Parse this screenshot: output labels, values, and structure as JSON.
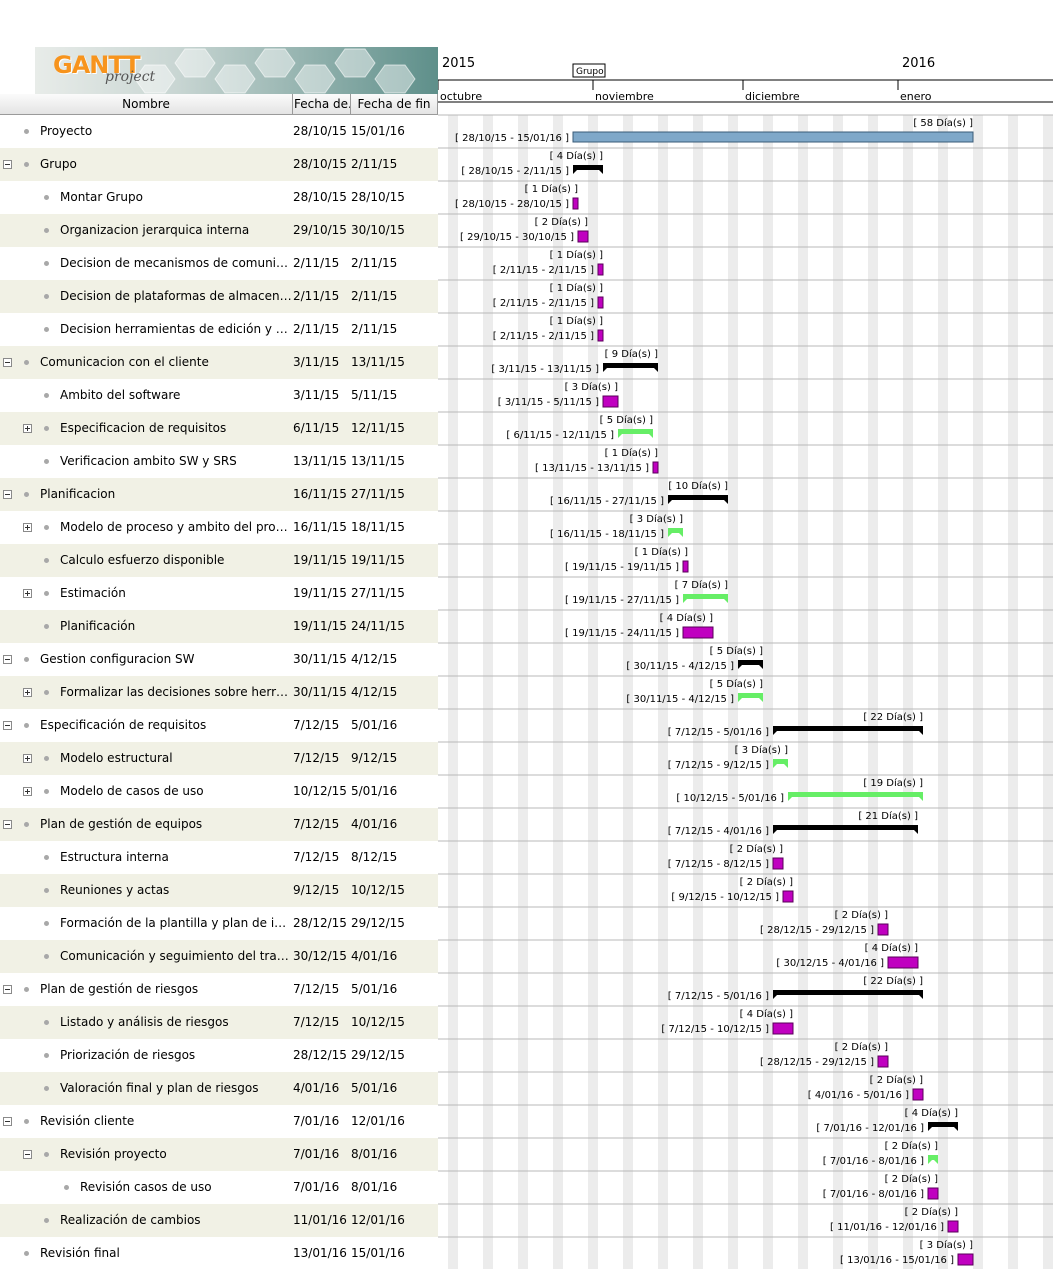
{
  "columns": {
    "name": "Nombre",
    "start": "Fecha de...",
    "end": "Fecha de fin"
  },
  "logo": {
    "main": "GANTT",
    "sub": "project"
  },
  "timeline": {
    "years": [
      "2015",
      "2016"
    ],
    "months": [
      "octubre",
      "noviembre",
      "diciembre",
      "enero"
    ],
    "marker": "Grupo"
  },
  "colors": {
    "summary": "#000000",
    "task": "#c000c0",
    "collapsed": "#66ee66",
    "project": "#7fa8c9",
    "task_border": "#5a005a"
  },
  "tasks": [
    {
      "name": "Proyecto",
      "start": "28/10/15",
      "end": "15/01/16",
      "level": 0,
      "toggle": "",
      "kind": "project",
      "duration": "[ 58 Día(s) ]",
      "range": "[ 28/10/15 - 15/01/16 ]",
      "s": "2015-10-28",
      "e": "2016-01-15"
    },
    {
      "name": "Grupo",
      "start": "28/10/15",
      "end": "2/11/15",
      "level": 0,
      "toggle": "minus",
      "kind": "summary",
      "duration": "[ 4 Día(s) ]",
      "range": "[ 28/10/15 - 2/11/15 ]",
      "s": "2015-10-28",
      "e": "2015-11-02"
    },
    {
      "name": "Montar Grupo",
      "start": "28/10/15",
      "end": "28/10/15",
      "level": 1,
      "toggle": "",
      "kind": "task",
      "duration": "[ 1 Día(s) ]",
      "range": "[ 28/10/15 - 28/10/15 ]",
      "s": "2015-10-28",
      "e": "2015-10-28"
    },
    {
      "name": "Organizacion jerarquica interna",
      "start": "29/10/15",
      "end": "30/10/15",
      "level": 1,
      "toggle": "",
      "kind": "task",
      "duration": "[ 2 Día(s) ]",
      "range": "[ 29/10/15 - 30/10/15 ]",
      "s": "2015-10-29",
      "e": "2015-10-30"
    },
    {
      "name": "Decision de mecanismos de comunicacion",
      "start": "2/11/15",
      "end": "2/11/15",
      "level": 1,
      "toggle": "",
      "kind": "task",
      "duration": "[ 1 Día(s) ]",
      "range": "[ 2/11/15 - 2/11/15 ]",
      "s": "2015-11-02",
      "e": "2015-11-02"
    },
    {
      "name": "Decision de plataformas de almacenamie...",
      "start": "2/11/15",
      "end": "2/11/15",
      "level": 1,
      "toggle": "",
      "kind": "task",
      "duration": "[ 1 Día(s) ]",
      "range": "[ 2/11/15 - 2/11/15 ]",
      "s": "2015-11-02",
      "e": "2015-11-02"
    },
    {
      "name": "Decision herramientas de edición y planifi...",
      "start": "2/11/15",
      "end": "2/11/15",
      "level": 1,
      "toggle": "",
      "kind": "task",
      "duration": "[ 1 Día(s) ]",
      "range": "[ 2/11/15 - 2/11/15 ]",
      "s": "2015-11-02",
      "e": "2015-11-02"
    },
    {
      "name": "Comunicacion con el cliente",
      "start": "3/11/15",
      "end": "13/11/15",
      "level": 0,
      "toggle": "minus",
      "kind": "summary",
      "duration": "[ 9 Día(s) ]",
      "range": "[ 3/11/15 - 13/11/15 ]",
      "s": "2015-11-03",
      "e": "2015-11-13"
    },
    {
      "name": "Ambito del software",
      "start": "3/11/15",
      "end": "5/11/15",
      "level": 1,
      "toggle": "",
      "kind": "task",
      "duration": "[ 3 Día(s) ]",
      "range": "[ 3/11/15 - 5/11/15 ]",
      "s": "2015-11-03",
      "e": "2015-11-05"
    },
    {
      "name": "Especificacion de requisitos",
      "start": "6/11/15",
      "end": "12/11/15",
      "level": 1,
      "toggle": "plus",
      "kind": "collapsed",
      "duration": "[ 5 Día(s) ]",
      "range": "[ 6/11/15 - 12/11/15 ]",
      "s": "2015-11-06",
      "e": "2015-11-12"
    },
    {
      "name": "Verificacion ambito SW y SRS",
      "start": "13/11/15",
      "end": "13/11/15",
      "level": 1,
      "toggle": "",
      "kind": "task",
      "duration": "[ 1 Día(s) ]",
      "range": "[ 13/11/15 - 13/11/15 ]",
      "s": "2015-11-13",
      "e": "2015-11-13"
    },
    {
      "name": "Planificacion",
      "start": "16/11/15",
      "end": "27/11/15",
      "level": 0,
      "toggle": "minus",
      "kind": "summary",
      "duration": "[ 10 Día(s) ]",
      "range": "[ 16/11/15 - 27/11/15 ]",
      "s": "2015-11-16",
      "e": "2015-11-27"
    },
    {
      "name": "Modelo de proceso y ambito del proyecto",
      "start": "16/11/15",
      "end": "18/11/15",
      "level": 1,
      "toggle": "plus",
      "kind": "collapsed",
      "duration": "[ 3 Día(s) ]",
      "range": "[ 16/11/15 - 18/11/15 ]",
      "s": "2015-11-16",
      "e": "2015-11-18"
    },
    {
      "name": "Calculo esfuerzo disponible",
      "start": "19/11/15",
      "end": "19/11/15",
      "level": 1,
      "toggle": "",
      "kind": "task",
      "duration": "[ 1 Día(s) ]",
      "range": "[ 19/11/15 - 19/11/15 ]",
      "s": "2015-11-19",
      "e": "2015-11-19"
    },
    {
      "name": "Estimación",
      "start": "19/11/15",
      "end": "27/11/15",
      "level": 1,
      "toggle": "plus",
      "kind": "collapsed",
      "duration": "[ 7 Día(s) ]",
      "range": "[ 19/11/15 - 27/11/15 ]",
      "s": "2015-11-19",
      "e": "2015-11-27"
    },
    {
      "name": "Planificación",
      "start": "19/11/15",
      "end": "24/11/15",
      "level": 1,
      "toggle": "",
      "kind": "task",
      "duration": "[ 4 Día(s) ]",
      "range": "[ 19/11/15 - 24/11/15 ]",
      "s": "2015-11-19",
      "e": "2015-11-24"
    },
    {
      "name": "Gestion configuracion SW",
      "start": "30/11/15",
      "end": "4/12/15",
      "level": 0,
      "toggle": "minus",
      "kind": "summary",
      "duration": "[ 5 Día(s) ]",
      "range": "[ 30/11/15 - 4/12/15 ]",
      "s": "2015-11-30",
      "e": "2015-12-04"
    },
    {
      "name": "Formalizar las decisiones sobre herramient...",
      "start": "30/11/15",
      "end": "4/12/15",
      "level": 1,
      "toggle": "plus",
      "kind": "collapsed",
      "duration": "[ 5 Día(s) ]",
      "range": "[ 30/11/15 - 4/12/15 ]",
      "s": "2015-11-30",
      "e": "2015-12-04"
    },
    {
      "name": "Especificación de requisitos",
      "start": "7/12/15",
      "end": "5/01/16",
      "level": 0,
      "toggle": "minus",
      "kind": "summary",
      "duration": "[ 22 Día(s) ]",
      "range": "[ 7/12/15 - 5/01/16 ]",
      "s": "2015-12-07",
      "e": "2016-01-05"
    },
    {
      "name": "Modelo estructural",
      "start": "7/12/15",
      "end": "9/12/15",
      "level": 1,
      "toggle": "plus",
      "kind": "collapsed",
      "duration": "[ 3 Día(s) ]",
      "range": "[ 7/12/15 - 9/12/15 ]",
      "s": "2015-12-07",
      "e": "2015-12-09"
    },
    {
      "name": "Modelo de casos de uso",
      "start": "10/12/15",
      "end": "5/01/16",
      "level": 1,
      "toggle": "plus",
      "kind": "collapsed",
      "duration": "[ 19 Día(s) ]",
      "range": "[ 10/12/15 - 5/01/16 ]",
      "s": "2015-12-10",
      "e": "2016-01-05"
    },
    {
      "name": "Plan de gestión de equipos",
      "start": "7/12/15",
      "end": "4/01/16",
      "level": 0,
      "toggle": "minus",
      "kind": "summary",
      "duration": "[ 21 Día(s) ]",
      "range": "[ 7/12/15 - 4/01/16 ]",
      "s": "2015-12-07",
      "e": "2016-01-04"
    },
    {
      "name": "Estructura interna",
      "start": "7/12/15",
      "end": "8/12/15",
      "level": 1,
      "toggle": "",
      "kind": "task",
      "duration": "[ 2 Día(s) ]",
      "range": "[ 7/12/15 - 8/12/15 ]",
      "s": "2015-12-07",
      "e": "2015-12-08"
    },
    {
      "name": "Reuniones y actas",
      "start": "9/12/15",
      "end": "10/12/15",
      "level": 1,
      "toggle": "",
      "kind": "task",
      "duration": "[ 2 Día(s) ]",
      "range": "[ 9/12/15 - 10/12/15 ]",
      "s": "2015-12-09",
      "e": "2015-12-10"
    },
    {
      "name": "Formación de la plantilla y plan de informes",
      "start": "28/12/15",
      "end": "29/12/15",
      "level": 1,
      "toggle": "",
      "kind": "task",
      "duration": "[ 2 Día(s) ]",
      "range": "[ 28/12/15 - 29/12/15 ]",
      "s": "2015-12-28",
      "e": "2015-12-29"
    },
    {
      "name": "Comunicación y seguimiento del trabajo",
      "start": "30/12/15",
      "end": "4/01/16",
      "level": 1,
      "toggle": "",
      "kind": "task",
      "duration": "[ 4 Día(s) ]",
      "range": "[ 30/12/15 - 4/01/16 ]",
      "s": "2015-12-30",
      "e": "2016-01-04"
    },
    {
      "name": "Plan de gestión de riesgos",
      "start": "7/12/15",
      "end": "5/01/16",
      "level": 0,
      "toggle": "minus",
      "kind": "summary",
      "duration": "[ 22 Día(s) ]",
      "range": "[ 7/12/15 - 5/01/16 ]",
      "s": "2015-12-07",
      "e": "2016-01-05"
    },
    {
      "name": "Listado y análisis de riesgos",
      "start": "7/12/15",
      "end": "10/12/15",
      "level": 1,
      "toggle": "",
      "kind": "task",
      "duration": "[ 4 Día(s) ]",
      "range": "[ 7/12/15 - 10/12/15 ]",
      "s": "2015-12-07",
      "e": "2015-12-10"
    },
    {
      "name": "Priorización de riesgos",
      "start": "28/12/15",
      "end": "29/12/15",
      "level": 1,
      "toggle": "",
      "kind": "task",
      "duration": "[ 2 Día(s) ]",
      "range": "[ 28/12/15 - 29/12/15 ]",
      "s": "2015-12-28",
      "e": "2015-12-29"
    },
    {
      "name": "Valoración final y plan de riesgos",
      "start": "4/01/16",
      "end": "5/01/16",
      "level": 1,
      "toggle": "",
      "kind": "task",
      "duration": "[ 2 Día(s) ]",
      "range": "[ 4/01/16 - 5/01/16 ]",
      "s": "2016-01-04",
      "e": "2016-01-05"
    },
    {
      "name": "Revisión cliente",
      "start": "7/01/16",
      "end": "12/01/16",
      "level": 0,
      "toggle": "minus",
      "kind": "summary",
      "duration": "[ 4 Día(s) ]",
      "range": "[ 7/01/16 - 12/01/16 ]",
      "s": "2016-01-07",
      "e": "2016-01-12"
    },
    {
      "name": "Revisión proyecto",
      "start": "7/01/16",
      "end": "8/01/16",
      "level": 1,
      "toggle": "minus",
      "kind": "collapsed",
      "duration": "[ 2 Día(s) ]",
      "range": "[ 7/01/16 - 8/01/16 ]",
      "s": "2016-01-07",
      "e": "2016-01-08"
    },
    {
      "name": "Revisión casos de uso",
      "start": "7/01/16",
      "end": "8/01/16",
      "level": 2,
      "toggle": "",
      "kind": "task",
      "duration": "[ 2 Día(s) ]",
      "range": "[ 7/01/16 - 8/01/16 ]",
      "s": "2016-01-07",
      "e": "2016-01-08"
    },
    {
      "name": "Realización de cambios",
      "start": "11/01/16",
      "end": "12/01/16",
      "level": 1,
      "toggle": "",
      "kind": "task",
      "duration": "[ 2 Día(s) ]",
      "range": "[ 11/01/16 - 12/01/16 ]",
      "s": "2016-01-11",
      "e": "2016-01-12"
    },
    {
      "name": "Revisión final",
      "start": "13/01/16",
      "end": "15/01/16",
      "level": 0,
      "toggle": "",
      "kind": "task",
      "duration": "[ 3 Día(s) ]",
      "range": "[ 13/01/16 - 15/01/16 ]",
      "s": "2016-01-13",
      "e": "2016-01-15"
    }
  ]
}
